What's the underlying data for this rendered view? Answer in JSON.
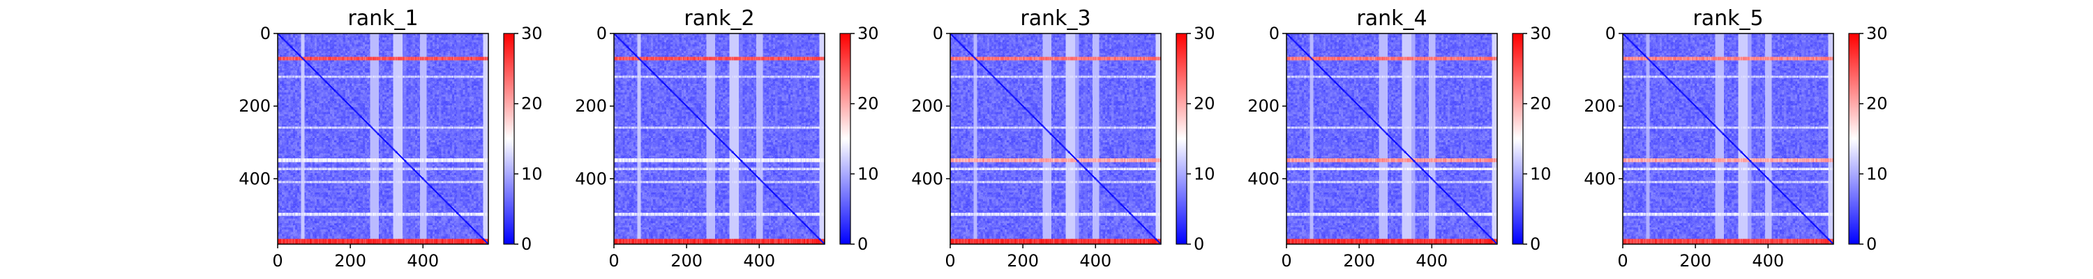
{
  "chart_data": {
    "type": "heatmap",
    "colormap": {
      "name": "bwr",
      "low": "#0000ff",
      "mid": "#ffffff",
      "high": "#ff0000"
    },
    "value_range": [
      0,
      30
    ],
    "matrix_size": 580,
    "panels": [
      {
        "title": "rank_1",
        "row_bands": [
          {
            "center": 68,
            "width": 6,
            "value": 26
          },
          {
            "center": 118,
            "width": 4,
            "value": 13
          },
          {
            "center": 258,
            "width": 4,
            "value": 13
          },
          {
            "center": 348,
            "width": 6,
            "value": 15
          },
          {
            "center": 372,
            "width": 4,
            "value": 13
          },
          {
            "center": 408,
            "width": 4,
            "value": 13
          },
          {
            "center": 497,
            "width": 5,
            "value": 14
          },
          {
            "center": 572,
            "width": 10,
            "value": 28
          }
        ],
        "col_bands": [
          {
            "center": 265,
            "width": 20,
            "value": 11
          },
          {
            "center": 330,
            "width": 25,
            "value": 12
          },
          {
            "center": 400,
            "width": 14,
            "value": 11
          }
        ]
      },
      {
        "title": "rank_2",
        "row_bands": [
          {
            "center": 68,
            "width": 6,
            "value": 26
          },
          {
            "center": 118,
            "width": 4,
            "value": 13
          },
          {
            "center": 258,
            "width": 4,
            "value": 13
          },
          {
            "center": 348,
            "width": 6,
            "value": 15
          },
          {
            "center": 372,
            "width": 4,
            "value": 13
          },
          {
            "center": 408,
            "width": 4,
            "value": 13
          },
          {
            "center": 497,
            "width": 5,
            "value": 14
          },
          {
            "center": 572,
            "width": 10,
            "value": 28
          }
        ],
        "col_bands": [
          {
            "center": 265,
            "width": 20,
            "value": 11
          },
          {
            "center": 330,
            "width": 25,
            "value": 12
          },
          {
            "center": 400,
            "width": 14,
            "value": 11
          }
        ]
      },
      {
        "title": "rank_3",
        "row_bands": [
          {
            "center": 68,
            "width": 6,
            "value": 24
          },
          {
            "center": 118,
            "width": 4,
            "value": 13
          },
          {
            "center": 258,
            "width": 4,
            "value": 13
          },
          {
            "center": 348,
            "width": 6,
            "value": 21
          },
          {
            "center": 372,
            "width": 4,
            "value": 14
          },
          {
            "center": 408,
            "width": 4,
            "value": 13
          },
          {
            "center": 497,
            "width": 5,
            "value": 14
          },
          {
            "center": 572,
            "width": 10,
            "value": 28
          }
        ],
        "col_bands": [
          {
            "center": 265,
            "width": 20,
            "value": 11
          },
          {
            "center": 330,
            "width": 25,
            "value": 12
          },
          {
            "center": 400,
            "width": 14,
            "value": 11
          }
        ]
      },
      {
        "title": "rank_4",
        "row_bands": [
          {
            "center": 68,
            "width": 6,
            "value": 24
          },
          {
            "center": 118,
            "width": 4,
            "value": 13
          },
          {
            "center": 258,
            "width": 4,
            "value": 13
          },
          {
            "center": 348,
            "width": 6,
            "value": 22
          },
          {
            "center": 372,
            "width": 4,
            "value": 15
          },
          {
            "center": 408,
            "width": 4,
            "value": 13
          },
          {
            "center": 497,
            "width": 5,
            "value": 14
          },
          {
            "center": 572,
            "width": 10,
            "value": 28
          }
        ],
        "col_bands": [
          {
            "center": 265,
            "width": 20,
            "value": 11
          },
          {
            "center": 330,
            "width": 25,
            "value": 12
          },
          {
            "center": 400,
            "width": 14,
            "value": 11
          }
        ]
      },
      {
        "title": "rank_5",
        "row_bands": [
          {
            "center": 68,
            "width": 6,
            "value": 23
          },
          {
            "center": 118,
            "width": 4,
            "value": 13
          },
          {
            "center": 258,
            "width": 4,
            "value": 13
          },
          {
            "center": 348,
            "width": 6,
            "value": 21
          },
          {
            "center": 372,
            "width": 4,
            "value": 14
          },
          {
            "center": 408,
            "width": 4,
            "value": 13
          },
          {
            "center": 497,
            "width": 5,
            "value": 14
          },
          {
            "center": 572,
            "width": 10,
            "value": 27
          }
        ],
        "col_bands": [
          {
            "center": 265,
            "width": 20,
            "value": 11
          },
          {
            "center": 330,
            "width": 25,
            "value": 12
          },
          {
            "center": 400,
            "width": 14,
            "value": 11
          }
        ]
      }
    ],
    "base_value": 4,
    "diagonal_value": 0,
    "x_ticks": [
      "0",
      "200",
      "400"
    ],
    "y_ticks": [
      "0",
      "200",
      "400"
    ],
    "x_tick_values": [
      0,
      200,
      400
    ],
    "y_tick_values": [
      0,
      200,
      400
    ],
    "colorbar_ticks": [
      "0",
      "10",
      "20",
      "30"
    ],
    "colorbar_tick_values": [
      0,
      10,
      20,
      30
    ]
  }
}
